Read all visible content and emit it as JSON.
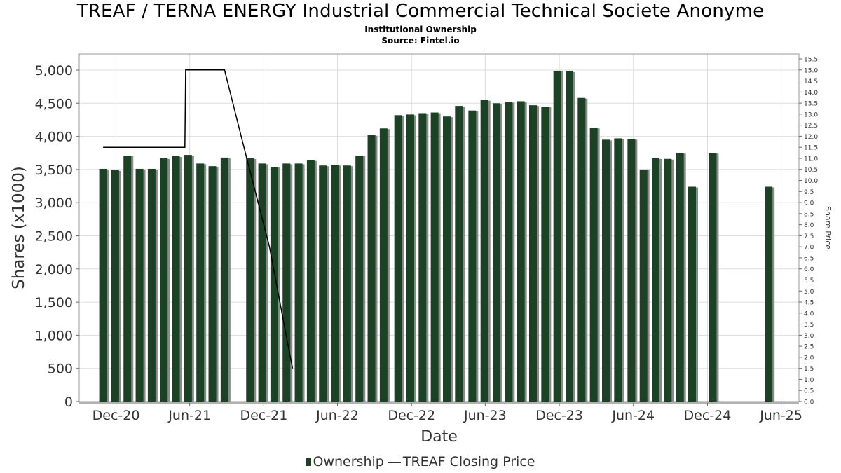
{
  "title": "TREAF / TERNA ENERGY Industrial Commercial Technical Societe Anonyme",
  "subtitle_1": "Institutional Ownership",
  "subtitle_2": "Source: Fintel.io",
  "legend": {
    "ownership_label": "Ownership",
    "price_label": "TREAF Closing Price"
  },
  "colors": {
    "bar": "#1b4224",
    "bar_shadow": "#8a8a8a",
    "price_line": "#000000",
    "grid": "#dddddd"
  },
  "chart_data": {
    "type": "bar",
    "xlabel": "Date",
    "ylabel": "Shares (x1000)",
    "y2label": "Share Price",
    "ylim": [
      0,
      5000
    ],
    "y2lim": [
      0,
      15.5
    ],
    "xlim": [
      "2020-09-01",
      "2025-07-15"
    ],
    "y_ticks": [
      "0",
      "500",
      "1,000",
      "1,500",
      "2,000",
      "2,500",
      "3,000",
      "3,500",
      "4,000",
      "4,500",
      "5,000"
    ],
    "y2_ticks": [
      "0.0",
      "0.5",
      "1.0",
      "1.5",
      "2.0",
      "2.5",
      "3.0",
      "3.5",
      "4.0",
      "4.5",
      "5.0",
      "5.5",
      "6.0",
      "6.5",
      "7.0",
      "7.5",
      "8.0",
      "8.5",
      "9.0",
      "9.5",
      "10.0",
      "10.5",
      "11.0",
      "11.5",
      "12.0",
      "12.5",
      "13.0",
      "13.5",
      "14.0",
      "14.5",
      "15.0",
      "15.5"
    ],
    "x_ticks": [
      {
        "label": "Dec-20",
        "date": "2020-12-01"
      },
      {
        "label": "Jun-21",
        "date": "2021-06-01"
      },
      {
        "label": "Dec-21",
        "date": "2021-12-01"
      },
      {
        "label": "Jun-22",
        "date": "2022-06-01"
      },
      {
        "label": "Dec-22",
        "date": "2022-12-01"
      },
      {
        "label": "Jun-23",
        "date": "2023-06-01"
      },
      {
        "label": "Dec-23",
        "date": "2023-12-01"
      },
      {
        "label": "Jun-24",
        "date": "2024-06-01"
      },
      {
        "label": "Dec-24",
        "date": "2024-12-01"
      },
      {
        "label": "Jun-25",
        "date": "2025-06-01"
      }
    ],
    "series": [
      {
        "name": "Ownership",
        "type": "bar",
        "dates": [
          "2020-10-30",
          "2020-11-29",
          "2020-12-29",
          "2021-01-28",
          "2021-02-27",
          "2021-03-29",
          "2021-04-28",
          "2021-05-28",
          "2021-06-27",
          "2021-07-27",
          "2021-08-26",
          "2021-10-28",
          "2021-11-27",
          "2021-12-27",
          "2022-01-26",
          "2022-02-25",
          "2022-03-27",
          "2022-04-26",
          "2022-05-26",
          "2022-06-25",
          "2022-07-25",
          "2022-08-24",
          "2022-09-23",
          "2022-10-29",
          "2022-11-28",
          "2022-12-28",
          "2023-01-27",
          "2023-02-26",
          "2023-03-28",
          "2023-04-30",
          "2023-05-30",
          "2023-06-29",
          "2023-07-29",
          "2023-08-28",
          "2023-09-27",
          "2023-10-27",
          "2023-11-26",
          "2023-12-26",
          "2024-01-25",
          "2024-02-24",
          "2024-03-25",
          "2024-04-24",
          "2024-05-27",
          "2024-06-26",
          "2024-07-26",
          "2024-08-25",
          "2024-09-24",
          "2024-10-24",
          "2024-12-14",
          "2025-05-01"
        ],
        "values": [
          3510,
          3490,
          3710,
          3510,
          3510,
          3670,
          3700,
          3720,
          3590,
          3550,
          3680,
          3670,
          3590,
          3540,
          3590,
          3590,
          3640,
          3560,
          3570,
          3560,
          3710,
          4020,
          4120,
          4320,
          4330,
          4350,
          4360,
          4300,
          4460,
          4390,
          4550,
          4500,
          4520,
          4530,
          4470,
          4450,
          4990,
          4980,
          4580,
          4130,
          3950,
          3970,
          3960,
          3500,
          3670,
          3660,
          3750,
          3240,
          3750,
          3240
        ]
      },
      {
        "name": "TREAF Closing Price",
        "type": "line",
        "points": [
          {
            "date": "2020-10-30",
            "price": 11.5
          },
          {
            "date": "2021-05-20",
            "price": 11.5
          },
          {
            "date": "2021-05-22",
            "price": 15.0
          },
          {
            "date": "2021-08-26",
            "price": 15.0
          },
          {
            "date": "2021-10-20",
            "price": 11.0
          },
          {
            "date": "2021-12-15",
            "price": 7.0
          },
          {
            "date": "2022-01-20",
            "price": 3.5
          },
          {
            "date": "2022-02-10",
            "price": 1.5
          }
        ]
      }
    ]
  }
}
